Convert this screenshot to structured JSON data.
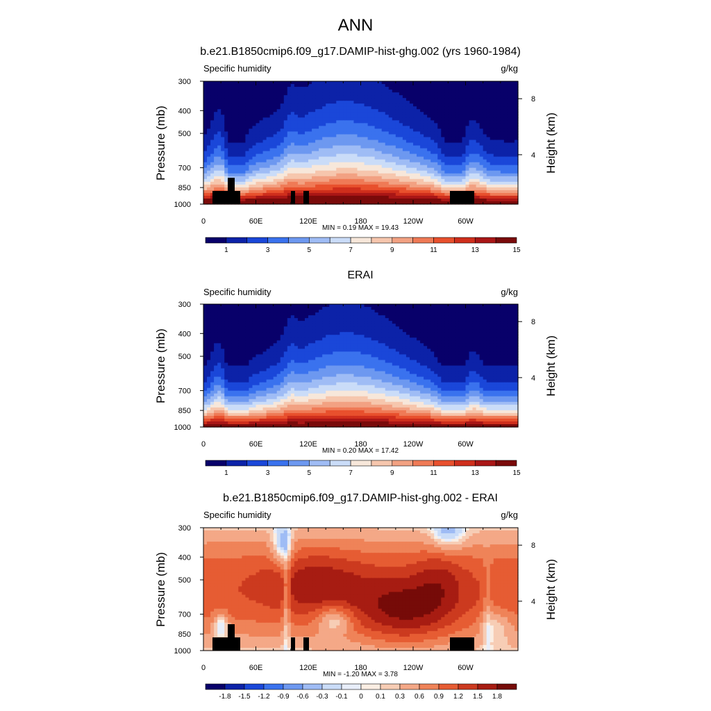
{
  "figure": {
    "main_title": "ANN"
  },
  "colors": {
    "abs_levels": [
      "#08006a",
      "#0c22a8",
      "#1a47d9",
      "#3a72ee",
      "#6d98f0",
      "#9fbcf5",
      "#cadcf8",
      "#f7e7da",
      "#f6c6ad",
      "#f2a182",
      "#ef7a56",
      "#e8502d",
      "#cf2e1c",
      "#a91616",
      "#7a0a0a"
    ],
    "diff_levels": [
      "#08006a",
      "#0c22a8",
      "#1a47d9",
      "#3a72ee",
      "#6d98f0",
      "#9fbcf5",
      "#cadcf8",
      "#e8eefa",
      "#fbeee3",
      "#f7cdb5",
      "#f4a887",
      "#ef8358",
      "#e65c33",
      "#cc3a1f",
      "#a71c12",
      "#760b08"
    ],
    "land_mask": "#000000"
  },
  "panels": [
    {
      "title": "b.e21.B1850cmip6.f09_g17.DAMIP-hist-ghg.002 (yrs 1960-1984)",
      "left_label": "Specific humidity",
      "right_label": "g/kg",
      "ylabel": "Pressure (mb)",
      "ylabel_right": "Height (km)",
      "stats": "MIN =   0.19  MAX =  19.43",
      "colorbar_labels": [
        "1",
        "3",
        "5",
        "7",
        "9",
        "11",
        "13",
        "15"
      ]
    },
    {
      "title": "ERAI",
      "left_label": "Specific humidity",
      "right_label": "g/kg",
      "ylabel": "Pressure (mb)",
      "ylabel_right": "Height (km)",
      "stats": "MIN =   0.20  MAX =  17.42",
      "colorbar_labels": [
        "1",
        "3",
        "5",
        "7",
        "9",
        "11",
        "13",
        "15"
      ]
    },
    {
      "title": "b.e21.B1850cmip6.f09_g17.DAMIP-hist-ghg.002 - ERAI",
      "left_label": "Specific humidity",
      "right_label": "g/kg",
      "ylabel": "Pressure (mb)",
      "ylabel_right": "Height (km)",
      "stats": "MIN =  -1.20  MAX =   3.78",
      "colorbar_labels": [
        "-1.8",
        "-1.5",
        "-1.2",
        "-0.9",
        "-0.6",
        "-0.3",
        "-0.1",
        "0",
        "0.1",
        "0.3",
        "0.6",
        "0.9",
        "1.2",
        "1.5",
        "1.8"
      ]
    }
  ],
  "chart_data": [
    {
      "type": "heatmap",
      "title": "b.e21.B1850cmip6.f09_g17.DAMIP-hist-ghg.002 (yrs 1960-1984)",
      "variable": "Specific humidity",
      "units": "g/kg",
      "xlabel": "",
      "ylabel": "Pressure (mb)",
      "ylabel_right": "Height (km)",
      "x_ticks": [
        "0",
        "60E",
        "120E",
        "180",
        "120W",
        "60W"
      ],
      "x_tick_lon": [
        0,
        60,
        120,
        180,
        240,
        300
      ],
      "xlim": [
        0,
        360
      ],
      "y_ticks": [
        300,
        400,
        500,
        700,
        850,
        1000
      ],
      "ylim": [
        1000,
        300
      ],
      "y_right_ticks": [
        4,
        8
      ],
      "contour_levels": [
        1,
        2,
        3,
        4,
        5,
        6,
        7,
        8,
        9,
        10,
        11,
        12,
        13,
        14,
        15
      ],
      "colorbar_labels": [
        "1",
        "3",
        "5",
        "7",
        "9",
        "11",
        "13",
        "15"
      ],
      "min": 0.19,
      "max": 19.43
    },
    {
      "type": "heatmap",
      "title": "ERAI",
      "variable": "Specific humidity",
      "units": "g/kg",
      "xlabel": "",
      "ylabel": "Pressure (mb)",
      "ylabel_right": "Height (km)",
      "x_ticks": [
        "0",
        "60E",
        "120E",
        "180",
        "120W",
        "60W"
      ],
      "x_tick_lon": [
        0,
        60,
        120,
        180,
        240,
        300
      ],
      "xlim": [
        0,
        360
      ],
      "y_ticks": [
        300,
        400,
        500,
        700,
        850,
        1000
      ],
      "ylim": [
        1000,
        300
      ],
      "y_right_ticks": [
        4,
        8
      ],
      "contour_levels": [
        1,
        2,
        3,
        4,
        5,
        6,
        7,
        8,
        9,
        10,
        11,
        12,
        13,
        14,
        15
      ],
      "colorbar_labels": [
        "1",
        "3",
        "5",
        "7",
        "9",
        "11",
        "13",
        "15"
      ],
      "min": 0.2,
      "max": 17.42
    },
    {
      "type": "heatmap",
      "title": "b.e21.B1850cmip6.f09_g17.DAMIP-hist-ghg.002 - ERAI",
      "variable": "Specific humidity",
      "units": "g/kg",
      "xlabel": "",
      "ylabel": "Pressure (mb)",
      "ylabel_right": "Height (km)",
      "x_ticks": [
        "0",
        "60E",
        "120E",
        "180",
        "120W",
        "60W"
      ],
      "x_tick_lon": [
        0,
        60,
        120,
        180,
        240,
        300
      ],
      "xlim": [
        0,
        360
      ],
      "y_ticks": [
        300,
        400,
        500,
        700,
        850,
        1000
      ],
      "ylim": [
        1000,
        300
      ],
      "y_right_ticks": [
        4,
        8
      ],
      "contour_levels": [
        -1.8,
        -1.5,
        -1.2,
        -0.9,
        -0.6,
        -0.3,
        -0.1,
        0,
        0.1,
        0.3,
        0.6,
        0.9,
        1.2,
        1.5,
        1.8
      ],
      "colorbar_labels": [
        "-1.8",
        "-1.5",
        "-1.2",
        "-0.9",
        "-0.6",
        "-0.3",
        "-0.1",
        "0",
        "0.1",
        "0.3",
        "0.6",
        "0.9",
        "1.2",
        "1.5",
        "1.8"
      ],
      "min": -1.2,
      "max": 3.78
    }
  ]
}
